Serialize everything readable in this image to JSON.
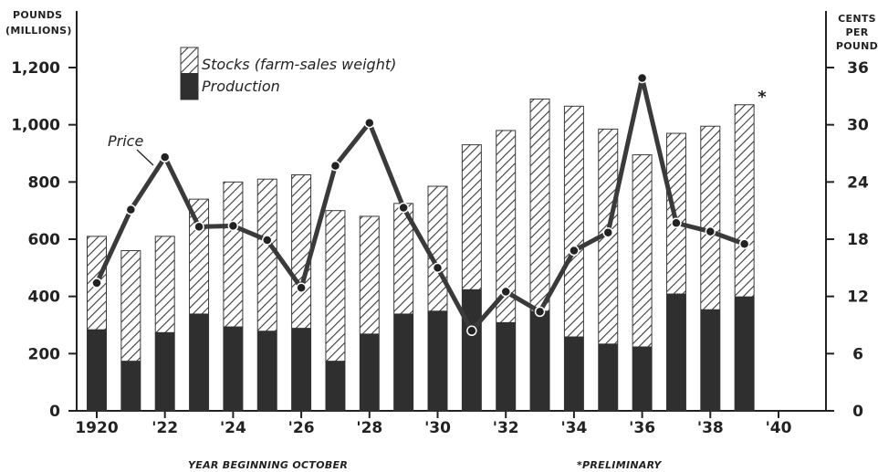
{
  "chart_data": {
    "type": "bar",
    "left_axis_title_lines": [
      "POUNDS",
      "(MILLIONS)"
    ],
    "right_axis_title_lines": [
      "CENTS",
      "PER",
      "POUND"
    ],
    "xlabel": "YEAR BEGINNING OCTOBER",
    "footnote": "*PRELIMINARY",
    "preliminary_marker": "*",
    "annotation_price": "Price",
    "legend": {
      "stocks": "Stocks (farm-sales weight)",
      "production": "Production"
    },
    "x_tick_labels": [
      "1920",
      "'22",
      "'24",
      "'26",
      "'28",
      "'30",
      "'32",
      "'34",
      "'36",
      "'38",
      "'40"
    ],
    "x_tick_years": [
      1920,
      1922,
      1924,
      1926,
      1928,
      1930,
      1932,
      1934,
      1936,
      1938,
      1940
    ],
    "left_ticks": [
      0,
      200,
      400,
      600,
      800,
      1000,
      1200
    ],
    "left_tick_labels": [
      "0",
      "200",
      "400",
      "600",
      "800",
      "1,000",
      "1,200"
    ],
    "right_ticks": [
      0,
      6,
      12,
      18,
      24,
      30,
      36
    ],
    "right_tick_labels": [
      "0",
      "6",
      "12",
      "18",
      "24",
      "30",
      "36"
    ],
    "left_ylim": [
      0,
      1200
    ],
    "right_ylim": [
      0,
      36
    ],
    "years": [
      1920,
      1921,
      1922,
      1923,
      1924,
      1925,
      1926,
      1927,
      1928,
      1929,
      1930,
      1931,
      1932,
      1933,
      1934,
      1935,
      1936,
      1937,
      1938,
      1939
    ],
    "series": [
      {
        "name": "Stocks (farm-sales weight)",
        "axis": "left",
        "style": "hatched-bar",
        "values": [
          610,
          560,
          610,
          740,
          800,
          810,
          825,
          700,
          680,
          725,
          785,
          930,
          980,
          1090,
          1065,
          985,
          895,
          970,
          995,
          1070
        ]
      },
      {
        "name": "Production",
        "axis": "left",
        "style": "solid-bar",
        "values": [
          285,
          175,
          275,
          340,
          295,
          280,
          290,
          175,
          270,
          340,
          350,
          425,
          310,
          350,
          260,
          235,
          225,
          410,
          355,
          400
        ]
      },
      {
        "name": "Price",
        "axis": "right",
        "style": "line",
        "values": [
          13.4,
          21.1,
          26.6,
          19.3,
          19.4,
          17.9,
          12.9,
          25.7,
          30.2,
          21.3,
          15.0,
          8.4,
          12.5,
          10.4,
          16.8,
          18.7,
          34.9,
          19.7,
          18.8,
          17.5
        ]
      }
    ],
    "colors": {
      "production": "#2f2f2f",
      "hatch": "#3a3a3a",
      "line": "#3a3a3a",
      "axis": "#222222"
    }
  }
}
